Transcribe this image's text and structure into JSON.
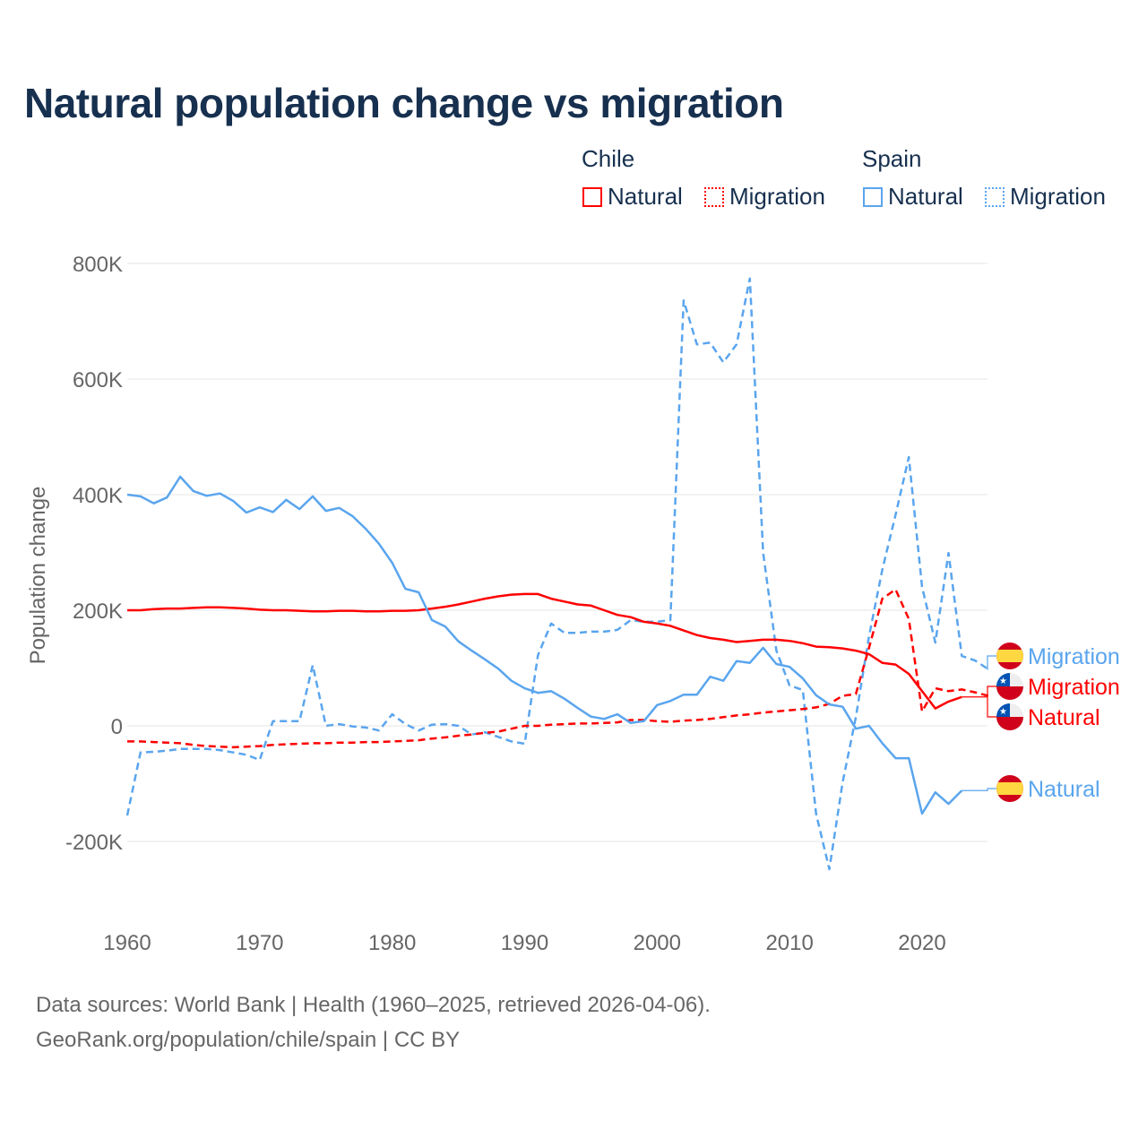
{
  "title": "Natural population change vs migration",
  "legend": {
    "groups": [
      {
        "name": "Chile",
        "items": [
          {
            "label": "Natural",
            "style": "solid",
            "color": "#ff0000"
          },
          {
            "label": "Migration",
            "style": "dotted",
            "color": "#ff0000"
          }
        ]
      },
      {
        "name": "Spain",
        "items": [
          {
            "label": "Natural",
            "style": "solid",
            "color": "#5aa5ee"
          },
          {
            "label": "Migration",
            "style": "dotted",
            "color": "#5aa5ee"
          }
        ]
      }
    ]
  },
  "chart_data": {
    "type": "line",
    "title": "Natural population change vs migration",
    "xlabel": "",
    "ylabel": "Population change",
    "xlim": [
      1960,
      2025
    ],
    "ylim": [
      -300000,
      800000
    ],
    "x_ticks": [
      "1960",
      "1970",
      "1980",
      "1990",
      "2000",
      "2010",
      "2020"
    ],
    "y_ticks": [
      {
        "value": 800000,
        "label": "800K"
      },
      {
        "value": 600000,
        "label": "600K"
      },
      {
        "value": 400000,
        "label": "400K"
      },
      {
        "value": 200000,
        "label": "200K"
      },
      {
        "value": 0,
        "label": "0"
      },
      {
        "value": -200000,
        "label": "-200K"
      }
    ],
    "grid": true,
    "series": [
      {
        "name": "Spain Migration",
        "end_label": "Migration",
        "country": "Spain",
        "color": "#5aa5ee",
        "dash": true,
        "start_year": 1960,
        "values": [
          -155,
          -46,
          -45,
          -43,
          -40,
          -40,
          -40,
          -42,
          -46,
          -50,
          -59,
          8,
          8,
          8,
          105,
          0,
          3,
          -1,
          -3,
          -8,
          20,
          3,
          -8,
          2,
          3,
          0,
          -15,
          -11,
          -19,
          -27,
          -31,
          122,
          177,
          161,
          161,
          163,
          163,
          166,
          183,
          180,
          180,
          183,
          736,
          660,
          663,
          629,
          660,
          774,
          300,
          130,
          70,
          62,
          -152,
          -248,
          -98,
          15,
          155,
          270,
          365,
          465,
          240,
          144,
          299,
          121,
          113,
          98
        ]
      },
      {
        "name": "Chile Migration",
        "end_label": "Migration",
        "country": "Chile",
        "color": "#ff0000",
        "dash": true,
        "start_year": 1960,
        "values": [
          -27,
          -27,
          -28,
          -29,
          -30,
          -33,
          -35,
          -36,
          -37,
          -36,
          -35,
          -33,
          -32,
          -31,
          -30,
          -30,
          -29,
          -29,
          -28,
          -28,
          -27,
          -26,
          -25,
          -22,
          -20,
          -17,
          -15,
          -12,
          -10,
          -5,
          0,
          0,
          2,
          3,
          4,
          4,
          5,
          6,
          10,
          10,
          8,
          7,
          9,
          10,
          12,
          15,
          18,
          20,
          23,
          25,
          27,
          29,
          32,
          38,
          52,
          55,
          135,
          220,
          236,
          185,
          25,
          65,
          60,
          63,
          58,
          52
        ]
      },
      {
        "name": "Chile Natural",
        "end_label": "Natural",
        "country": "Chile",
        "color": "#ff0000",
        "dash": false,
        "start_year": 1960,
        "values": [
          200,
          200,
          202,
          203,
          203,
          204,
          205,
          205,
          204,
          203,
          201,
          200,
          200,
          199,
          198,
          198,
          199,
          199,
          198,
          198,
          199,
          199,
          200,
          203,
          206,
          210,
          215,
          220,
          224,
          227,
          228,
          228,
          220,
          215,
          210,
          208,
          200,
          192,
          188,
          180,
          177,
          173,
          165,
          157,
          152,
          149,
          145,
          147,
          149,
          149,
          147,
          143,
          137,
          136,
          134,
          130,
          124,
          109,
          106,
          90,
          60,
          30,
          42,
          50
        ]
      },
      {
        "name": "Spain Natural",
        "end_label": "Natural",
        "country": "Spain",
        "color": "#5aa5ee",
        "dash": false,
        "start_year": 1960,
        "values": [
          400,
          397,
          385,
          395,
          431,
          406,
          398,
          402,
          389,
          369,
          378,
          370,
          391,
          375,
          397,
          372,
          377,
          363,
          341,
          315,
          282,
          237,
          231,
          183,
          172,
          146,
          130,
          115,
          99,
          78,
          65,
          57,
          60,
          47,
          31,
          16,
          12,
          20,
          5,
          8,
          36,
          43,
          54,
          54,
          85,
          78,
          112,
          109,
          135,
          107,
          102,
          82,
          53,
          37,
          33,
          -5,
          0,
          -30,
          -56,
          -56,
          -152,
          -115,
          -135,
          -112
        ]
      }
    ],
    "value_unit": "thousands"
  },
  "footer": {
    "line1": "Data sources: World Bank | Health (1960–2025, retrieved 2026-04-06).",
    "line2": "GeoRank.org/population/chile/spain | CC BY"
  }
}
